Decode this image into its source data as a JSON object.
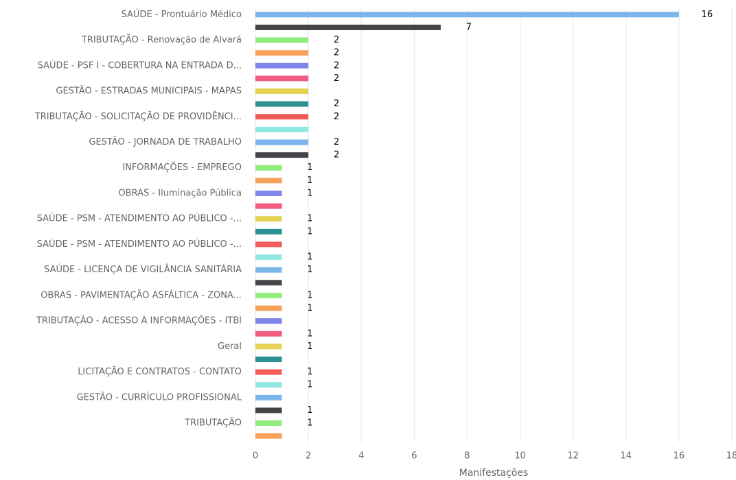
{
  "chart_data": {
    "type": "barh",
    "x_label": "Manifestações",
    "categories": [
      "SAÚDE - Prontuário Médico",
      null,
      "TRIBUTAÇÃO - Renovação de Alvará",
      null,
      "SAÚDE - PSF I - COBERTURA NA ENTRADA D...",
      null,
      "GESTÃO - ESTRADAS MUNICIPAIS - MAPAS",
      null,
      "TRIBUTAÇÃO - SOLICITAÇÃO DE PROVIDÊNCI...",
      null,
      "GESTÃO - JORNADA DE TRABALHO",
      null,
      "INFORMAÇÕES - EMPREGO",
      null,
      "OBRAS - Iluminação Pública",
      null,
      "SAÚDE - PSM - ATENDIMENTO AO PÚBLICO -...",
      null,
      "SAÚDE - PSM - ATENDIMENTO AO PÚBLICO -...",
      null,
      "SAÚDE - LICENÇA DE VIGILÂNCIA SANITÁRIA",
      null,
      "OBRAS - PAVIMENTAÇÃO ASFÁLTICA - ZONA...",
      null,
      "TRIBUTAÇÃO - ACESSO À INFORMAÇÕES - ITBI",
      null,
      "Geral",
      null,
      "LICITAÇÃO E CONTRATOS - CONTATO",
      null,
      "GESTÃO - CURRÍCULO PROFISSIONAL",
      null,
      "TRIBUTAÇÃO",
      null
    ],
    "values": [
      16,
      7,
      2,
      2,
      2,
      2,
      2,
      2,
      2,
      2,
      2,
      2,
      1,
      1,
      1,
      1,
      1,
      1,
      1,
      1,
      1,
      1,
      1,
      1,
      1,
      1,
      1,
      1,
      1,
      1,
      1,
      1,
      1,
      1
    ],
    "value_labels": [
      "16",
      "7",
      "2",
      "2",
      "2",
      "2",
      null,
      "2",
      "2",
      null,
      "2",
      "2",
      "1",
      "1",
      "1",
      null,
      "1",
      "1",
      null,
      "1",
      "1",
      null,
      "1",
      "1",
      null,
      "1",
      "1",
      null,
      "1",
      "1",
      null,
      "1",
      "1",
      null
    ],
    "colors": [
      "#7cb5ec",
      "#434348",
      "#90ed7d",
      "#f7a35c",
      "#8085e9",
      "#f15c80",
      "#e4d354",
      "#2b908f",
      "#f45b5b",
      "#91e8e1"
    ],
    "xlim": [
      0,
      18
    ],
    "xticks": [
      0,
      2,
      4,
      6,
      8,
      10,
      12,
      14,
      16,
      18
    ],
    "grid": true
  }
}
